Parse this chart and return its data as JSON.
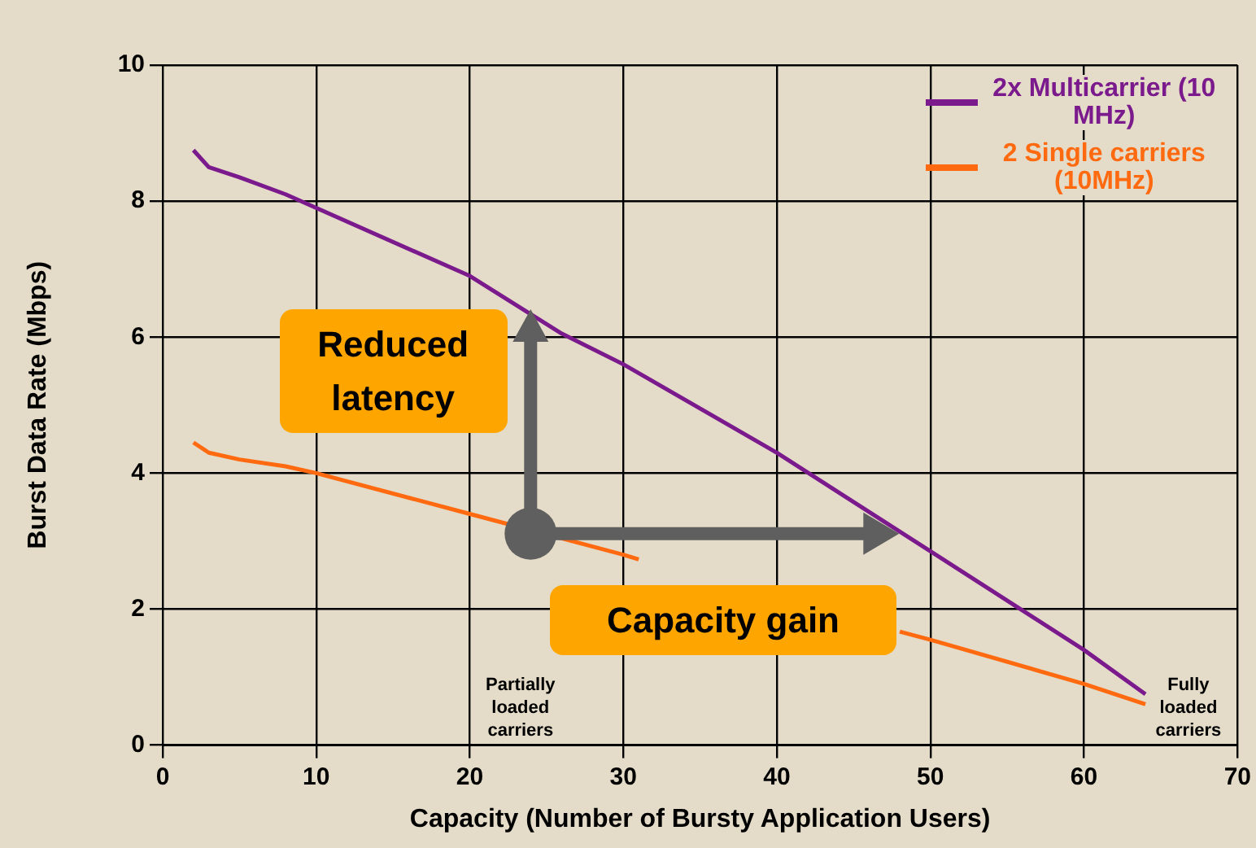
{
  "chart_data": {
    "type": "line",
    "xlabel": "Capacity (Number of Bursty Application Users)",
    "ylabel": "Burst Data Rate (Mbps)",
    "xlim": [
      0,
      70
    ],
    "xticks": [
      0,
      10,
      20,
      30,
      40,
      50,
      60,
      70
    ],
    "ylim": [
      0,
      10
    ],
    "yticks": [
      0,
      2,
      4,
      6,
      8,
      10
    ],
    "grid": true,
    "legend": "top right",
    "line_style": "solid",
    "marker": "none",
    "series": [
      {
        "name": "2x Multicarrier (10 MHz)",
        "color": "#7b1a8c",
        "x": [
          2,
          3,
          5,
          8,
          10,
          20,
          26,
          30,
          40,
          50,
          60,
          64
        ],
        "values": [
          8.75,
          8.5,
          8.35,
          8.1,
          7.9,
          6.9,
          6.05,
          5.6,
          4.3,
          2.85,
          1.4,
          0.75
        ]
      },
      {
        "name": "2 Single carriers (10MHz)",
        "color": "#ff6a10",
        "x": [
          2,
          3,
          5,
          8,
          10,
          20,
          30,
          31,
          40,
          48,
          50,
          60,
          64
        ],
        "values": [
          4.45,
          4.3,
          4.2,
          4.1,
          4.0,
          3.4,
          2.8,
          2.73,
          null,
          1.67,
          1.55,
          0.9,
          0.6
        ]
      }
    ],
    "annotations": [
      "Reduced latency",
      "Capacity gain",
      "Partially loaded carriers",
      "Fully loaded carriers"
    ]
  }
}
